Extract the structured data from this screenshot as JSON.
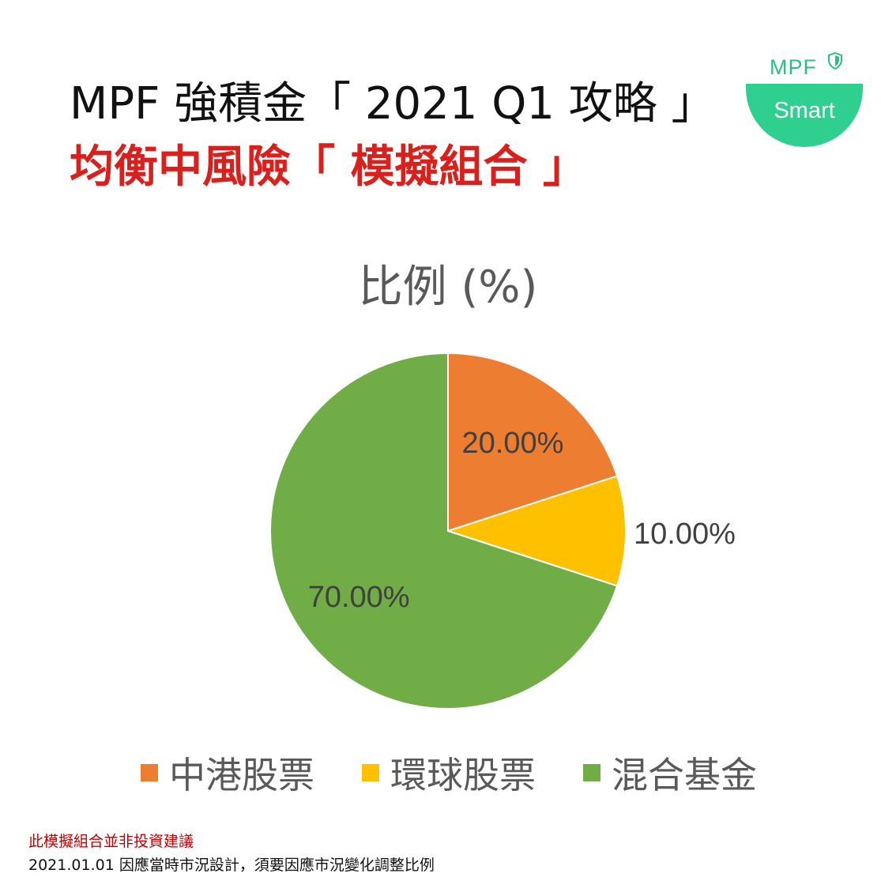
{
  "header": {
    "line1": "MPF 強積金「 2021 Q1 攻略 」",
    "line2": "均衡中風險「 模擬組合 」"
  },
  "logo": {
    "top_text": "MPF",
    "badge_text": "Smart",
    "color": "#2fcf8f"
  },
  "chart_data": {
    "type": "pie",
    "title": "比例 (%)",
    "legend_position": "bottom",
    "slices": [
      {
        "name": "中港股票",
        "value": 20,
        "label": "20.00%",
        "color": "#ed7d31"
      },
      {
        "name": "環球股票",
        "value": 10,
        "label": "10.00%",
        "color": "#ffc000"
      },
      {
        "name": "混合基金",
        "value": 70,
        "label": "70.00%",
        "color": "#70ad47"
      }
    ]
  },
  "notes": {
    "disclaimer": "此模擬組合並非投資建議",
    "date_note": "2021.01.01 因應當時市況設計，須要因應市況變化調整比例"
  }
}
